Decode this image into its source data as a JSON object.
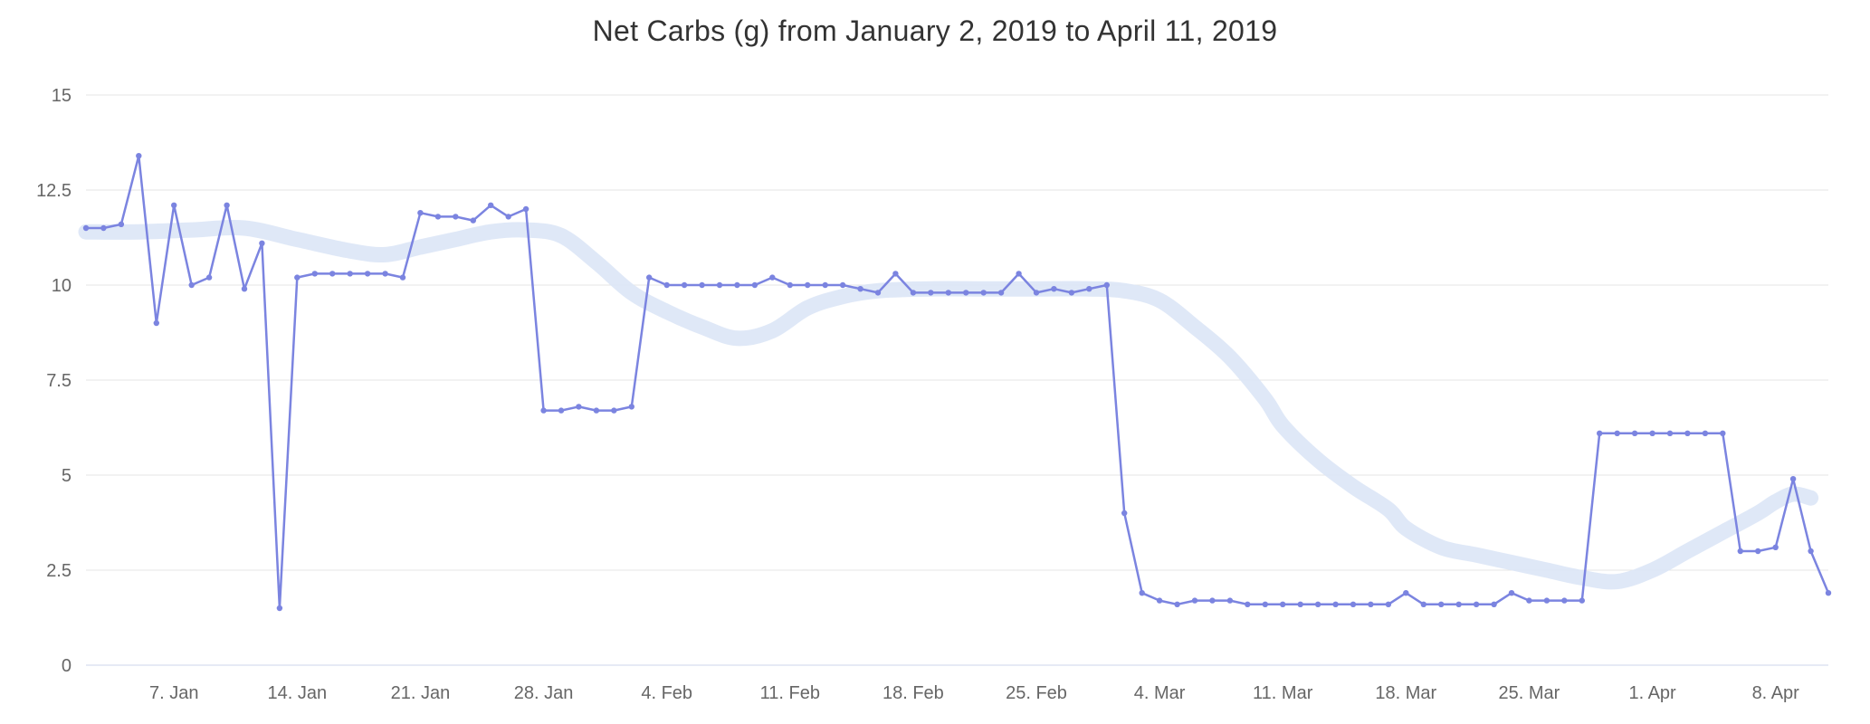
{
  "chart_data": {
    "type": "line",
    "title": "Net Carbs (g) from January 2, 2019 to April 11, 2019",
    "xlabel": "",
    "ylabel": "",
    "ylim": [
      0,
      15
    ],
    "y_ticks": [
      0,
      2.5,
      5,
      7.5,
      10,
      12.5,
      15
    ],
    "y_tick_labels": [
      "0",
      "2.5",
      "5",
      "7.5",
      "10",
      "12.5",
      "15"
    ],
    "x_range_days": [
      0,
      99
    ],
    "x_ticks": [
      {
        "day": 5,
        "label": "7. Jan"
      },
      {
        "day": 12,
        "label": "14. Jan"
      },
      {
        "day": 19,
        "label": "21. Jan"
      },
      {
        "day": 26,
        "label": "28. Jan"
      },
      {
        "day": 33,
        "label": "4. Feb"
      },
      {
        "day": 40,
        "label": "11. Feb"
      },
      {
        "day": 47,
        "label": "18. Feb"
      },
      {
        "day": 54,
        "label": "25. Feb"
      },
      {
        "day": 61,
        "label": "4. Mar"
      },
      {
        "day": 68,
        "label": "11. Mar"
      },
      {
        "day": 75,
        "label": "18. Mar"
      },
      {
        "day": 82,
        "label": "25. Mar"
      },
      {
        "day": 89,
        "label": "1. Apr"
      },
      {
        "day": 96,
        "label": "8. Apr"
      }
    ],
    "grid": true,
    "legend": "none",
    "series": [
      {
        "name": "Net Carbs (g)",
        "type": "line-with-markers",
        "x_start_day": 0,
        "values": [
          11.5,
          11.5,
          11.6,
          13.4,
          9.0,
          12.1,
          10.0,
          10.2,
          12.1,
          9.9,
          11.1,
          1.5,
          10.2,
          10.3,
          10.3,
          10.3,
          10.3,
          10.3,
          10.2,
          11.9,
          11.8,
          11.8,
          11.7,
          12.1,
          11.8,
          12.0,
          6.7,
          6.7,
          6.8,
          6.7,
          6.7,
          6.8,
          10.2,
          10.0,
          10.0,
          10.0,
          10.0,
          10.0,
          10.0,
          10.2,
          10.0,
          10.0,
          10.0,
          10.0,
          9.9,
          9.8,
          10.3,
          9.8,
          9.8,
          9.8,
          9.8,
          9.8,
          9.8,
          10.3,
          9.8,
          9.9,
          9.8,
          9.9,
          10.0,
          4.0,
          1.9,
          1.7,
          1.6,
          1.7,
          1.7,
          1.7,
          1.6,
          1.6,
          1.6,
          1.6,
          1.6,
          1.6,
          1.6,
          1.6,
          1.6,
          1.9,
          1.6,
          1.6,
          1.6,
          1.6,
          1.6,
          1.9,
          1.7,
          1.7,
          1.7,
          1.7,
          6.1,
          6.1,
          6.1,
          6.1,
          6.1,
          6.1,
          6.1,
          6.1,
          3.0,
          3.0,
          3.1,
          4.9,
          3.0,
          1.9
        ]
      },
      {
        "name": "smoothed trend band",
        "type": "smooth-band",
        "points": [
          [
            0,
            11.4
          ],
          [
            3,
            11.4
          ],
          [
            6,
            11.45
          ],
          [
            9,
            11.5
          ],
          [
            12,
            11.2
          ],
          [
            15,
            10.9
          ],
          [
            17,
            10.8
          ],
          [
            19,
            11.0
          ],
          [
            21,
            11.2
          ],
          [
            23,
            11.4
          ],
          [
            25,
            11.45
          ],
          [
            27,
            11.3
          ],
          [
            29,
            10.6
          ],
          [
            31,
            9.8
          ],
          [
            33,
            9.3
          ],
          [
            35,
            8.9
          ],
          [
            37,
            8.6
          ],
          [
            39,
            8.8
          ],
          [
            41,
            9.4
          ],
          [
            43,
            9.7
          ],
          [
            45,
            9.85
          ],
          [
            48,
            9.9
          ],
          [
            51,
            9.9
          ],
          [
            54,
            9.9
          ],
          [
            57,
            9.9
          ],
          [
            59,
            9.85
          ],
          [
            61,
            9.6
          ],
          [
            63,
            8.9
          ],
          [
            65,
            8.1
          ],
          [
            67,
            7.0
          ],
          [
            68,
            6.3
          ],
          [
            70,
            5.4
          ],
          [
            72,
            4.7
          ],
          [
            74,
            4.1
          ],
          [
            75,
            3.6
          ],
          [
            77,
            3.1
          ],
          [
            79,
            2.9
          ],
          [
            81,
            2.7
          ],
          [
            83,
            2.5
          ],
          [
            85,
            2.3
          ],
          [
            87,
            2.2
          ],
          [
            89,
            2.5
          ],
          [
            91,
            3.0
          ],
          [
            93,
            3.5
          ],
          [
            95,
            4.0
          ],
          [
            96,
            4.3
          ],
          [
            97,
            4.5
          ],
          [
            98,
            4.4
          ]
        ]
      }
    ],
    "colors": {
      "line": "#7b84e0",
      "marker": "#7b84e0",
      "band": "#dce6f6",
      "grid": "#e6e6e6",
      "baseline": "#ccd6eb",
      "axis_label": "#666666",
      "title": "#333333"
    }
  }
}
